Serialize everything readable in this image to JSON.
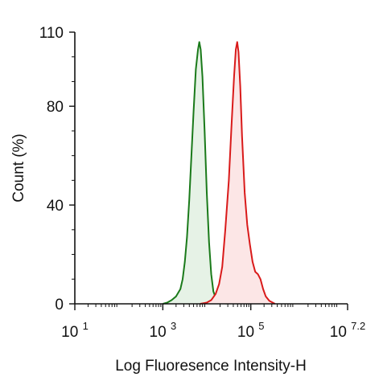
{
  "chart_data": {
    "type": "area",
    "xlabel": "Log Fluoresence Intensity-H",
    "ylabel": "Count  (%)",
    "x_scale": "log10",
    "xlim": [
      1,
      7.2
    ],
    "ylim": [
      0,
      110
    ],
    "x_ticks": [
      {
        "base": "10",
        "exp": "1",
        "value": 1
      },
      {
        "base": "10",
        "exp": "3",
        "value": 3
      },
      {
        "base": "10",
        "exp": "5",
        "value": 5
      },
      {
        "base": "10",
        "exp": "7.2",
        "value": 7.2
      }
    ],
    "y_ticks": [
      {
        "label": "0",
        "value": 0
      },
      {
        "label": "40",
        "value": 40
      },
      {
        "label": "80",
        "value": 80
      },
      {
        "label": "110",
        "value": 110
      }
    ],
    "grid": false,
    "legend": "none",
    "series": [
      {
        "color": "#1a7a1a",
        "fill": "#e6f2e6",
        "points": [
          [
            3.0,
            0
          ],
          [
            3.1,
            0.5
          ],
          [
            3.2,
            1.5
          ],
          [
            3.3,
            3
          ],
          [
            3.4,
            6
          ],
          [
            3.45,
            10
          ],
          [
            3.5,
            17
          ],
          [
            3.55,
            27
          ],
          [
            3.6,
            42
          ],
          [
            3.65,
            60
          ],
          [
            3.7,
            78
          ],
          [
            3.75,
            95
          ],
          [
            3.8,
            103
          ],
          [
            3.83,
            106
          ],
          [
            3.86,
            103
          ],
          [
            3.9,
            92
          ],
          [
            3.95,
            70
          ],
          [
            4.0,
            45
          ],
          [
            4.05,
            25
          ],
          [
            4.1,
            12
          ],
          [
            4.15,
            5
          ],
          [
            4.2,
            2.5
          ],
          [
            4.3,
            1
          ],
          [
            4.45,
            0
          ]
        ]
      },
      {
        "color": "#d91a1a",
        "fill": "#fce6e6",
        "points": [
          [
            3.85,
            0
          ],
          [
            4.0,
            0.5
          ],
          [
            4.1,
            1.5
          ],
          [
            4.2,
            4
          ],
          [
            4.28,
            8
          ],
          [
            4.35,
            15
          ],
          [
            4.42,
            30
          ],
          [
            4.5,
            50
          ],
          [
            4.56,
            72
          ],
          [
            4.62,
            92
          ],
          [
            4.66,
            103
          ],
          [
            4.69,
            106
          ],
          [
            4.72,
            102
          ],
          [
            4.76,
            88
          ],
          [
            4.8,
            68
          ],
          [
            4.86,
            45
          ],
          [
            4.92,
            32
          ],
          [
            4.98,
            24
          ],
          [
            5.04,
            17
          ],
          [
            5.1,
            13
          ],
          [
            5.16,
            12
          ],
          [
            5.22,
            10
          ],
          [
            5.28,
            6
          ],
          [
            5.34,
            3
          ],
          [
            5.42,
            1.2
          ],
          [
            5.55,
            0
          ]
        ]
      }
    ]
  }
}
